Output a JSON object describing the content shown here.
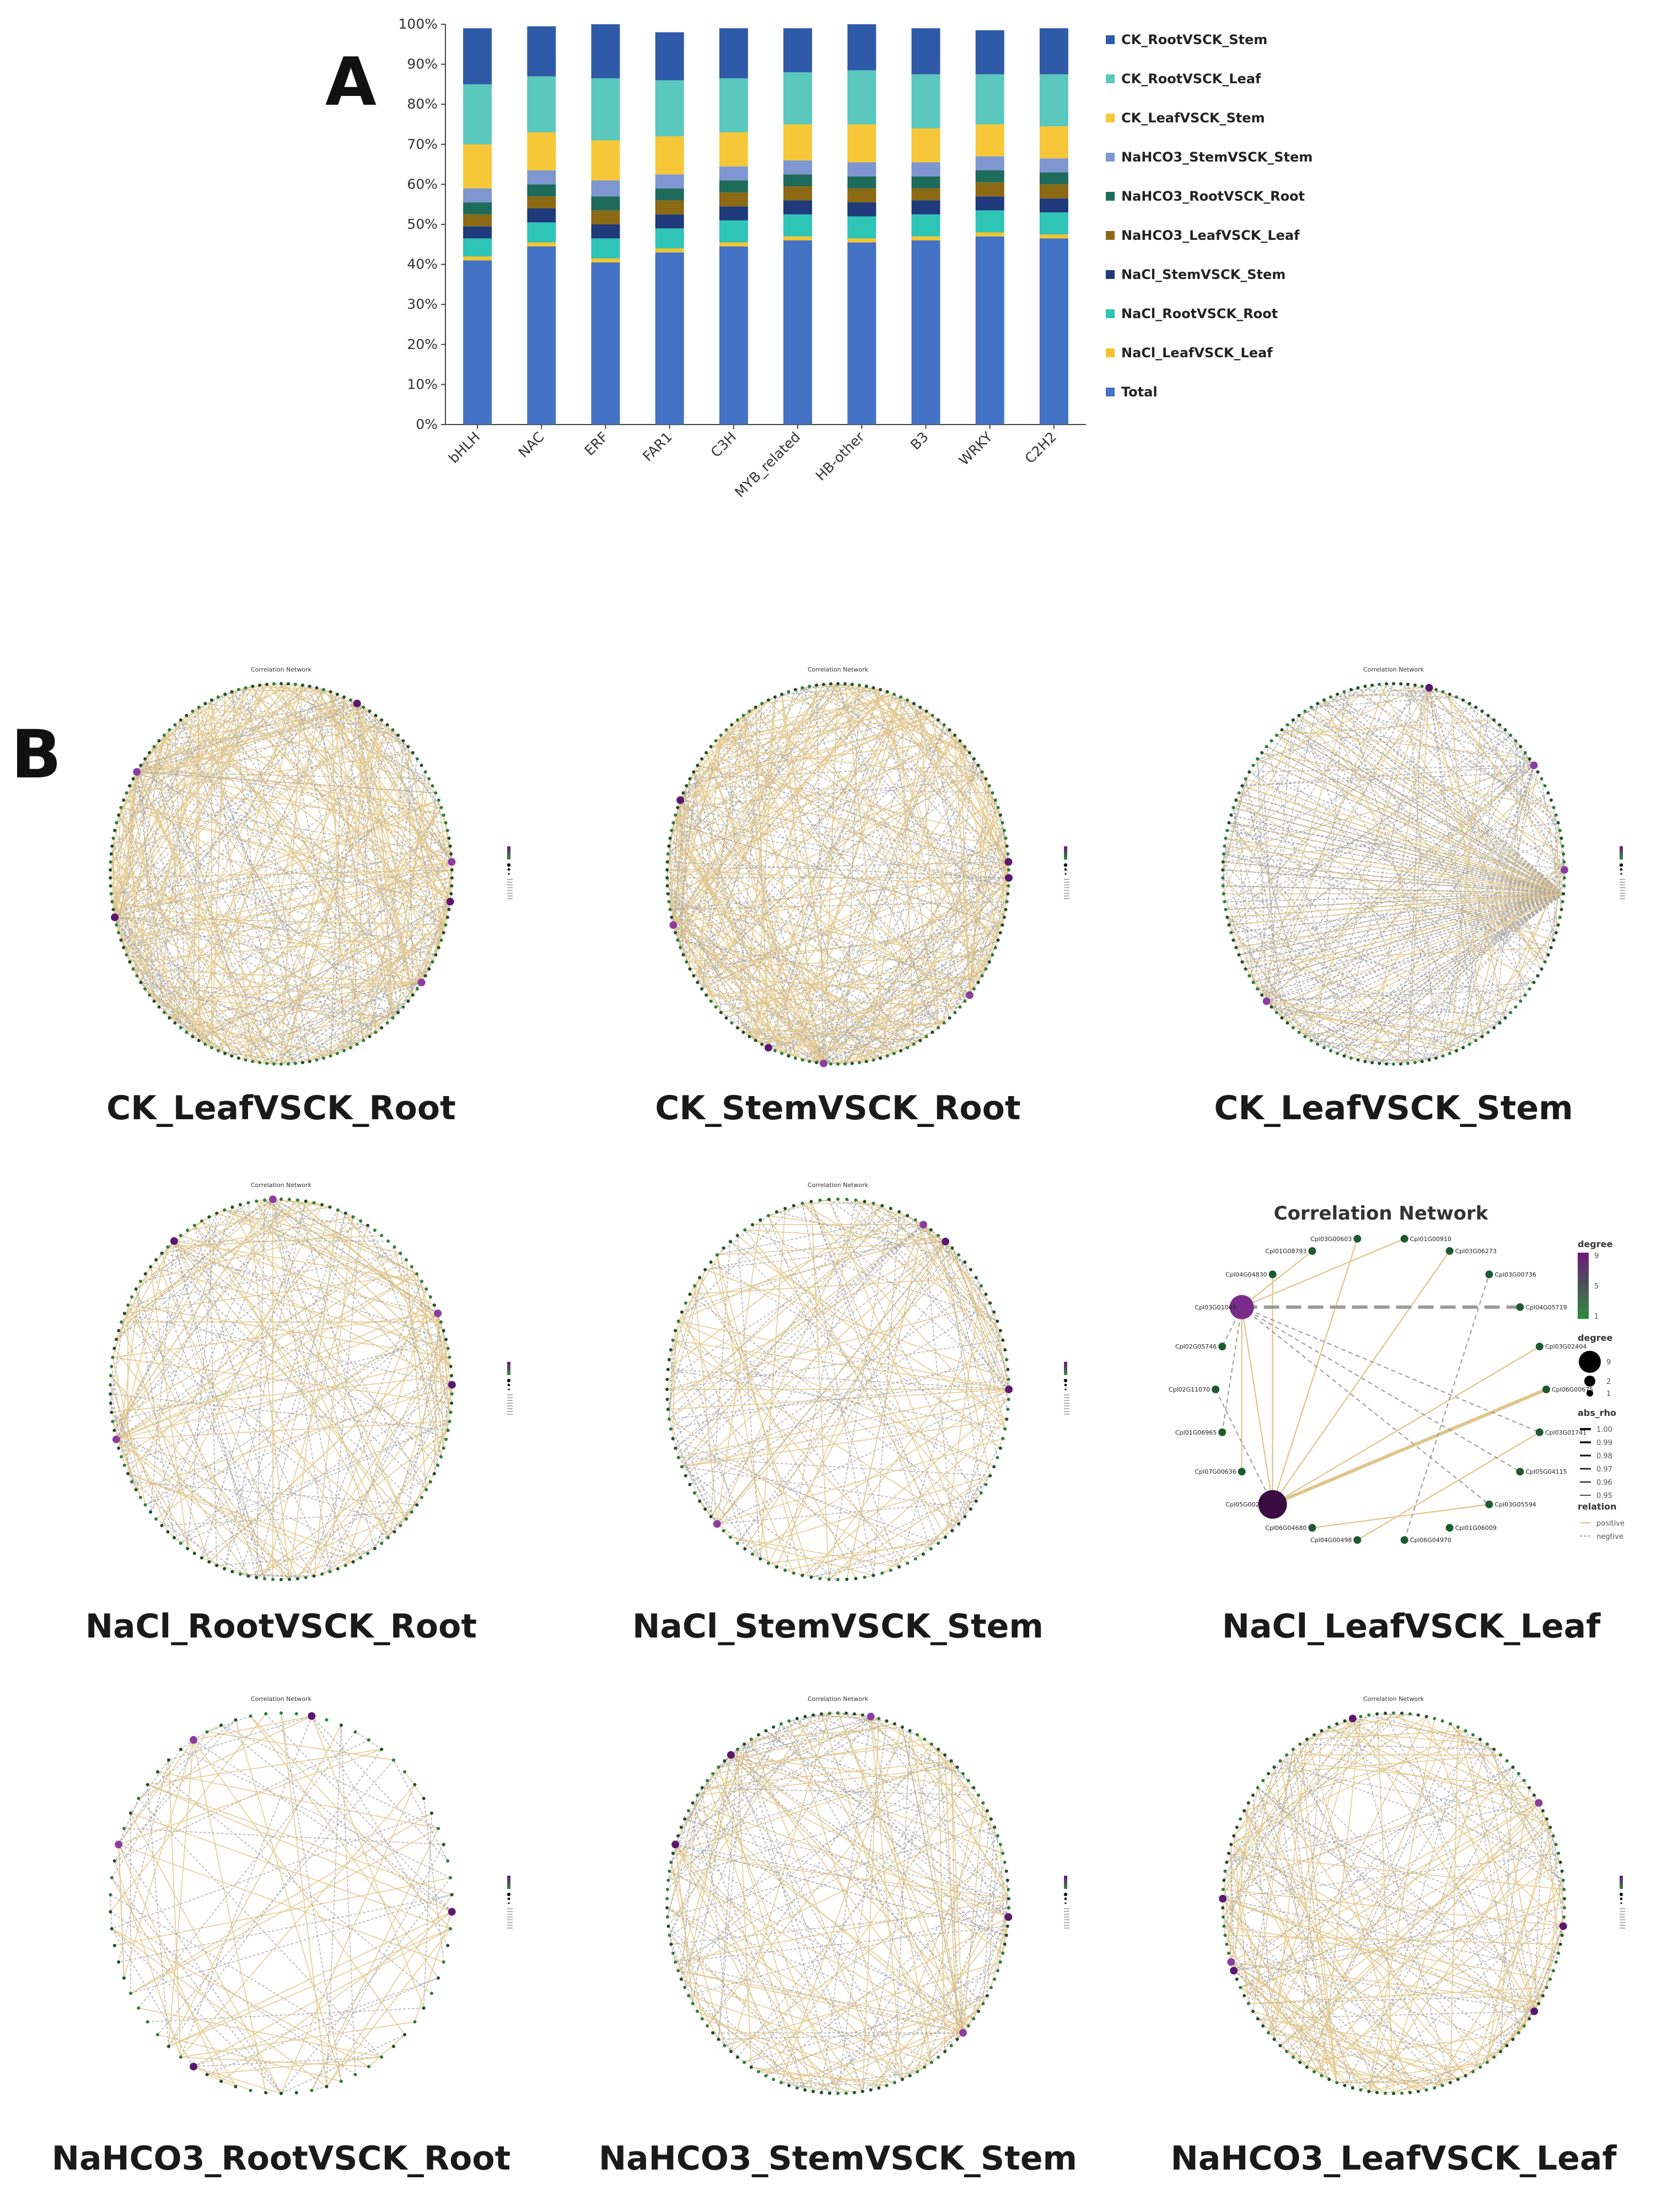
{
  "panel_a": {
    "letter": "A"
  },
  "panel_b": {
    "letter": "B"
  },
  "chart_data": [
    {
      "type": "bar",
      "stacked": true,
      "title": "",
      "xlabel": "",
      "ylabel": "",
      "ylim": [
        0,
        100
      ],
      "y_ticks": [
        "0%",
        "10%",
        "20%",
        "30%",
        "40%",
        "50%",
        "60%",
        "70%",
        "80%",
        "90%",
        "100%"
      ],
      "categories": [
        "bHLH",
        "NAC",
        "ERF",
        "FAR1",
        "C3H",
        "MYB_related",
        "HB-other",
        "B3",
        "WRKY",
        "C2H2"
      ],
      "series": [
        {
          "name": "Total",
          "color": "#4472C4",
          "values": [
            41,
            44.5,
            40.5,
            43,
            44.5,
            46,
            45.5,
            46,
            47,
            46.5
          ]
        },
        {
          "name": "NaCl_LeafVSCK_Leaf",
          "color": "#F4C430",
          "values": [
            1,
            1,
            1,
            1,
            1,
            1,
            1,
            1,
            1,
            1
          ]
        },
        {
          "name": "NaCl_RootVSCK_Root",
          "color": "#2EC4B6",
          "values": [
            4.5,
            5,
            5,
            5,
            5.5,
            5.5,
            5.5,
            5.5,
            5.5,
            5.5
          ]
        },
        {
          "name": "NaCl_StemVSCK_Stem",
          "color": "#1F3A7A",
          "values": [
            3,
            3.5,
            3.5,
            3.5,
            3.5,
            3.5,
            3.5,
            3.5,
            3.5,
            3.5
          ]
        },
        {
          "name": "NaHCO3_LeafVSCK_Leaf",
          "color": "#8B6914",
          "values": [
            3,
            3,
            3.5,
            3.5,
            3.5,
            3.5,
            3.5,
            3,
            3.5,
            3.5
          ]
        },
        {
          "name": "NaHCO3_RootVSCK_Root",
          "color": "#1E6B5C",
          "values": [
            3,
            3,
            3.5,
            3,
            3,
            3,
            3,
            3,
            3,
            3
          ]
        },
        {
          "name": "NaHCO3_StemVSCK_Stem",
          "color": "#7E97D1",
          "values": [
            3.5,
            3.5,
            4,
            3.5,
            3.5,
            3.5,
            3.5,
            3.5,
            3.5,
            3.5
          ]
        },
        {
          "name": "CK_LeafVSCK_Stem",
          "color": "#F6C739",
          "values": [
            11,
            9.5,
            10,
            9.5,
            8.5,
            9,
            9.5,
            8.5,
            8,
            8
          ]
        },
        {
          "name": "CK_RootVSCK_Leaf",
          "color": "#5BC8BE",
          "values": [
            15,
            14,
            15.5,
            14,
            13.5,
            13,
            13.5,
            13.5,
            12.5,
            13
          ]
        },
        {
          "name": "CK_RootVSCK_Stem",
          "color": "#2F5AA8",
          "values": [
            14,
            12.5,
            13.5,
            12,
            12.5,
            11,
            11.5,
            11.5,
            11,
            11.5
          ]
        }
      ],
      "legend": {
        "placement": "right",
        "order": [
          "CK_RootVSCK_Stem",
          "CK_RootVSCK_Leaf",
          "CK_LeafVSCK_Stem",
          "NaHCO3_StemVSCK_Stem",
          "NaHCO3_RootVSCK_Root",
          "NaHCO3_LeafVSCK_Leaf",
          "NaCl_StemVSCK_Stem",
          "NaCl_RootVSCK_Root",
          "NaCl_LeafVSCK_Leaf",
          "Total"
        ]
      }
    },
    {
      "type": "network",
      "title": "Correlation Network",
      "layout": "circular",
      "panels": [
        {
          "caption": "CK_LeafVSCK_Root",
          "node_count": 150,
          "edge_count": 420,
          "positive_share": 0.55,
          "hubs": 6,
          "style": "dense"
        },
        {
          "caption": "CK_StemVSCK_Root",
          "node_count": 150,
          "edge_count": 420,
          "positive_share": 0.6,
          "hubs": 8,
          "style": "dense"
        },
        {
          "caption": "CK_LeafVSCK_Stem",
          "node_count": 150,
          "edge_count": 380,
          "positive_share": 0.3,
          "hubs": 4,
          "style": "fan"
        },
        {
          "caption": "NaCl_RootVSCK_Root",
          "node_count": 130,
          "edge_count": 230,
          "positive_share": 0.55,
          "hubs": 5,
          "style": "medium"
        },
        {
          "caption": "NaCl_StemVSCK_Stem",
          "node_count": 120,
          "edge_count": 200,
          "positive_share": 0.45,
          "hubs": 4,
          "style": "medium"
        },
        {
          "caption": "NaHCO3_RootVSCK_Root",
          "node_count": 70,
          "edge_count": 110,
          "positive_share": 0.55,
          "hubs": 5,
          "style": "sparse"
        },
        {
          "caption": "NaHCO3_StemVSCK_Stem",
          "node_count": 130,
          "edge_count": 230,
          "positive_share": 0.45,
          "hubs": 5,
          "style": "medium"
        },
        {
          "caption": "NaHCO3_LeafVSCK_Leaf",
          "node_count": 130,
          "edge_count": 230,
          "positive_share": 0.55,
          "hubs": 7,
          "style": "medium"
        }
      ],
      "detail_panel": {
        "caption": "NaCl_LeafVSCK_Leaf",
        "title": "Correlation Network",
        "nodes": [
          {
            "id": "Cpl01G00910",
            "degree": 1
          },
          {
            "id": "Cpl03G06273",
            "degree": 1
          },
          {
            "id": "Cpl03G00736",
            "degree": 1
          },
          {
            "id": "Cpl04G05719",
            "degree": 1
          },
          {
            "id": "Cpl03G02404",
            "degree": 1
          },
          {
            "id": "Cpl06G00675",
            "degree": 1
          },
          {
            "id": "Cpl03G01741",
            "degree": 1
          },
          {
            "id": "Cpl05G04115",
            "degree": 1
          },
          {
            "id": "Cpl03G05594",
            "degree": 1
          },
          {
            "id": "Cpl01G06009",
            "degree": 1
          },
          {
            "id": "Cpl06G04970",
            "degree": 1
          },
          {
            "id": "Cpl04G00498",
            "degree": 1
          },
          {
            "id": "Cpl06G04680",
            "degree": 1
          },
          {
            "id": "Cpl05G00239",
            "degree": 9
          },
          {
            "id": "Cpl07G00636",
            "degree": 1
          },
          {
            "id": "Cpl01G06965",
            "degree": 1
          },
          {
            "id": "Cpl02G11070",
            "degree": 1
          },
          {
            "id": "Cpl02G05746",
            "degree": 1
          },
          {
            "id": "Cpl03G01069",
            "degree": 5
          },
          {
            "id": "Cpl04G04830",
            "degree": 1
          },
          {
            "id": "Cpl01G08793",
            "degree": 1
          },
          {
            "id": "Cpl03G00603",
            "degree": 1
          }
        ],
        "legend": {
          "degree_color_title": "degree",
          "degree_color_ticks": [
            "9",
            "5",
            "1"
          ],
          "degree_size_title": "degree",
          "degree_size_ticks": [
            "9",
            "2",
            "1"
          ],
          "abs_rho_title": "abs_rho",
          "abs_rho_ticks": [
            "1.00",
            "0.99",
            "0.98",
            "0.97",
            "0.96",
            "0.95"
          ],
          "relation_title": "relation",
          "relation_items": [
            "positive",
            "negtive"
          ]
        }
      }
    }
  ]
}
